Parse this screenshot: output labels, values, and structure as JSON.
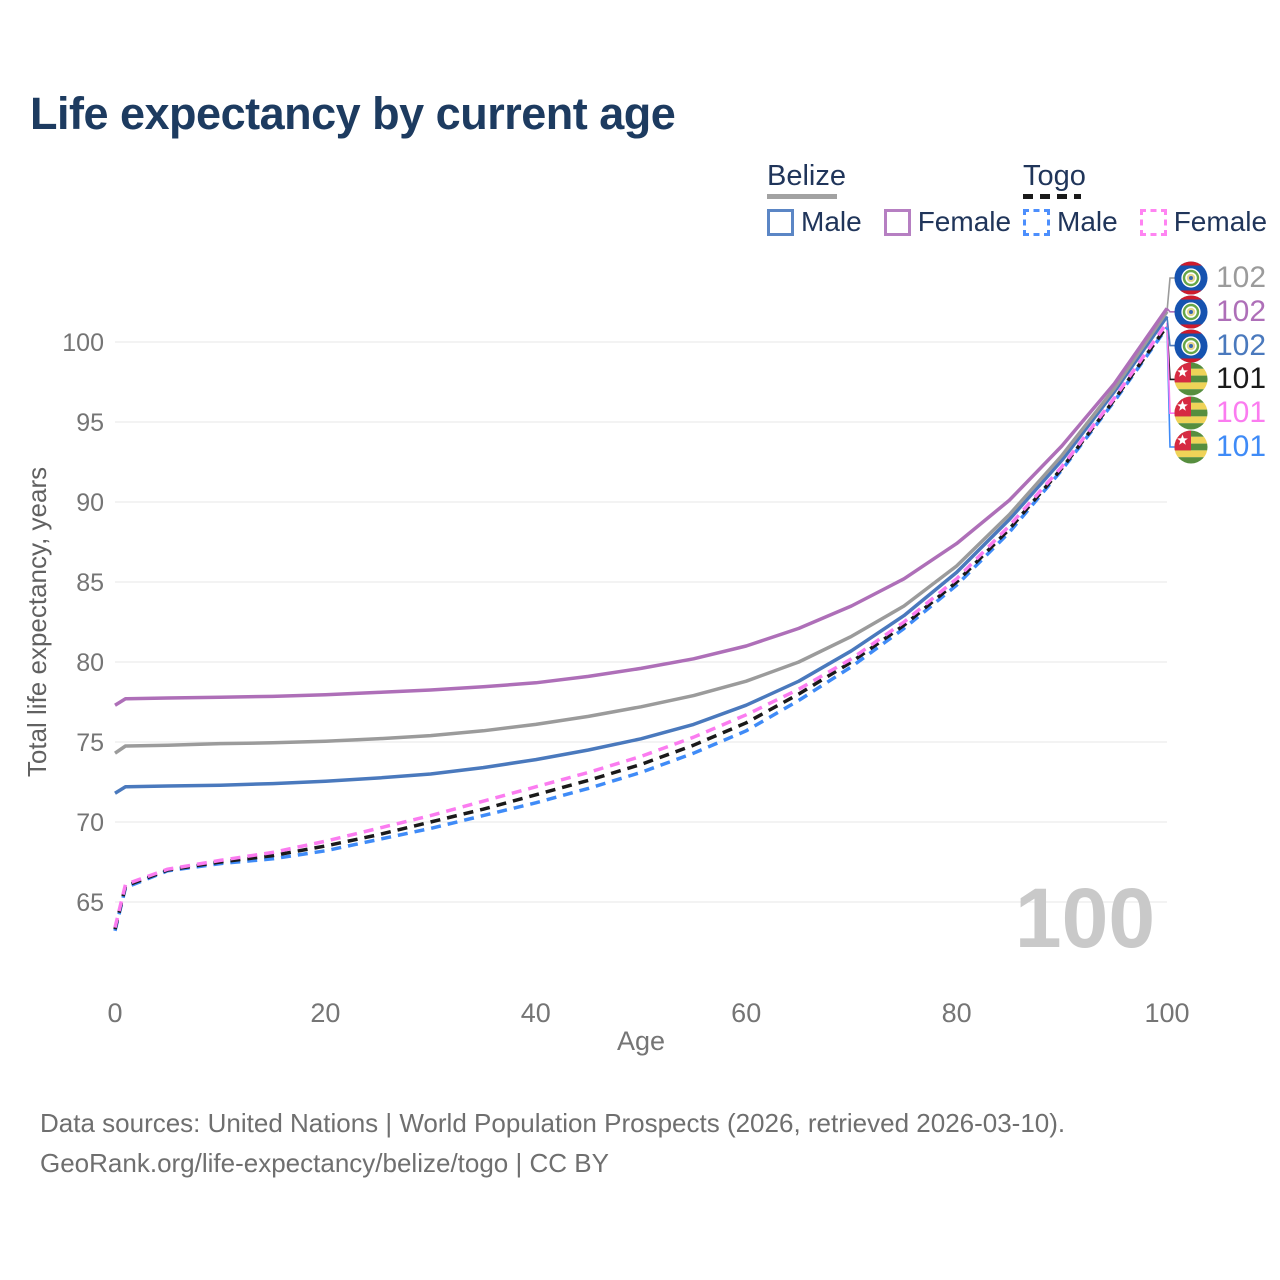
{
  "title": "Life expectancy by current age",
  "legend": {
    "belize": {
      "title": "Belize",
      "male_label": "Male",
      "female_label": "Female"
    },
    "togo": {
      "title": "Togo",
      "male_label": "Male",
      "female_label": "Female"
    }
  },
  "footer": {
    "line1": "Data sources: United Nations | World Population Prospects (2026, retrieved 2026-03-10).",
    "line2": "GeoRank.org/life-expectancy/belize/togo | CC BY"
  },
  "chart_data": {
    "type": "line",
    "title": "Life expectancy by current age",
    "xlabel": "Age",
    "ylabel": "Total life expectancy, years",
    "xlim": [
      0,
      100
    ],
    "ylim": [
      62,
      103
    ],
    "x_ticks": [
      0,
      20,
      40,
      60,
      80,
      100
    ],
    "y_ticks": [
      65,
      70,
      75,
      80,
      85,
      90,
      95,
      100
    ],
    "grid": "horizontal-only",
    "legend_position": "top-right",
    "age_hover_indicator": "100",
    "x": [
      0,
      1,
      5,
      10,
      15,
      20,
      25,
      30,
      35,
      40,
      45,
      50,
      55,
      60,
      65,
      70,
      75,
      80,
      85,
      90,
      95,
      100
    ],
    "series": [
      {
        "name": "Togo Male",
        "country": "Togo",
        "sex": "Male",
        "line_style": "dashed",
        "color": "#3f8bf7",
        "end_label": "101",
        "label_rank": 5,
        "values": [
          63.2,
          65.9,
          66.95,
          67.4,
          67.7,
          68.2,
          68.9,
          69.6,
          70.4,
          71.2,
          72.1,
          73.1,
          74.3,
          75.7,
          77.6,
          79.7,
          82.1,
          84.8,
          88.1,
          92.0,
          96.3,
          100.9
        ]
      },
      {
        "name": "Togo Both sexes",
        "country": "Togo",
        "sex": "Both",
        "line_style": "dashed",
        "color": "#1a1a1a",
        "end_label": "101",
        "label_rank": 3,
        "values": [
          63.3,
          66.0,
          67.0,
          67.5,
          67.9,
          68.5,
          69.2,
          70.0,
          70.8,
          71.7,
          72.6,
          73.6,
          74.8,
          76.2,
          78.0,
          80.0,
          82.3,
          85.0,
          88.3,
          92.1,
          96.4,
          101.0
        ]
      },
      {
        "name": "Togo Female",
        "country": "Togo",
        "sex": "Female",
        "line_style": "dashed",
        "color": "#fb7cf0",
        "end_label": "101",
        "label_rank": 4,
        "values": [
          63.4,
          66.1,
          67.05,
          67.6,
          68.1,
          68.8,
          69.6,
          70.4,
          71.3,
          72.2,
          73.1,
          74.1,
          75.3,
          76.7,
          78.3,
          80.2,
          82.5,
          85.2,
          88.5,
          92.2,
          96.5,
          101.2
        ]
      },
      {
        "name": "Belize Male",
        "country": "Belize",
        "sex": "Male",
        "line_style": "solid",
        "color": "#4a79bd",
        "end_label": "102",
        "label_rank": 2,
        "values": [
          71.8,
          72.2,
          72.25,
          72.3,
          72.4,
          72.55,
          72.75,
          73.0,
          73.4,
          73.9,
          74.5,
          75.2,
          76.1,
          77.3,
          78.8,
          80.7,
          82.9,
          85.6,
          88.9,
          92.6,
          96.9,
          101.6
        ]
      },
      {
        "name": "Belize Both sexes",
        "country": "Belize",
        "sex": "Both",
        "line_style": "solid",
        "color": "#9b9b9b",
        "end_label": "102",
        "label_rank": 0,
        "values": [
          74.3,
          74.75,
          74.8,
          74.9,
          74.95,
          75.05,
          75.2,
          75.4,
          75.7,
          76.1,
          76.6,
          77.2,
          77.9,
          78.8,
          80.0,
          81.6,
          83.5,
          86.0,
          89.2,
          92.9,
          97.1,
          101.9
        ]
      },
      {
        "name": "Belize Female",
        "country": "Belize",
        "sex": "Female",
        "line_style": "solid",
        "color": "#ae6fb8",
        "end_label": "102",
        "label_rank": 1,
        "values": [
          77.3,
          77.7,
          77.75,
          77.8,
          77.85,
          77.95,
          78.1,
          78.25,
          78.45,
          78.7,
          79.1,
          79.6,
          80.2,
          81.0,
          82.1,
          83.5,
          85.2,
          87.4,
          90.1,
          93.5,
          97.4,
          102.1
        ]
      }
    ],
    "end_labels": [
      {
        "flag": "belize",
        "value": "102",
        "color": "#9b9b9b",
        "series": "Belize Both sexes"
      },
      {
        "flag": "belize",
        "value": "102",
        "color": "#ae6fb8",
        "series": "Belize Female"
      },
      {
        "flag": "belize",
        "value": "102",
        "color": "#4a79bd",
        "series": "Belize Male"
      },
      {
        "flag": "togo",
        "value": "101",
        "color": "#1a1a1a",
        "series": "Togo Both sexes"
      },
      {
        "flag": "togo",
        "value": "101",
        "color": "#fb7cf0",
        "series": "Togo Female"
      },
      {
        "flag": "togo",
        "value": "101",
        "color": "#3f8bf7",
        "series": "Togo Male"
      }
    ],
    "colors": {
      "grid": "#e7e7e7",
      "axis_text": "#757575",
      "watermark": "#c9c9c9",
      "title_text": "#1d3b60"
    }
  }
}
